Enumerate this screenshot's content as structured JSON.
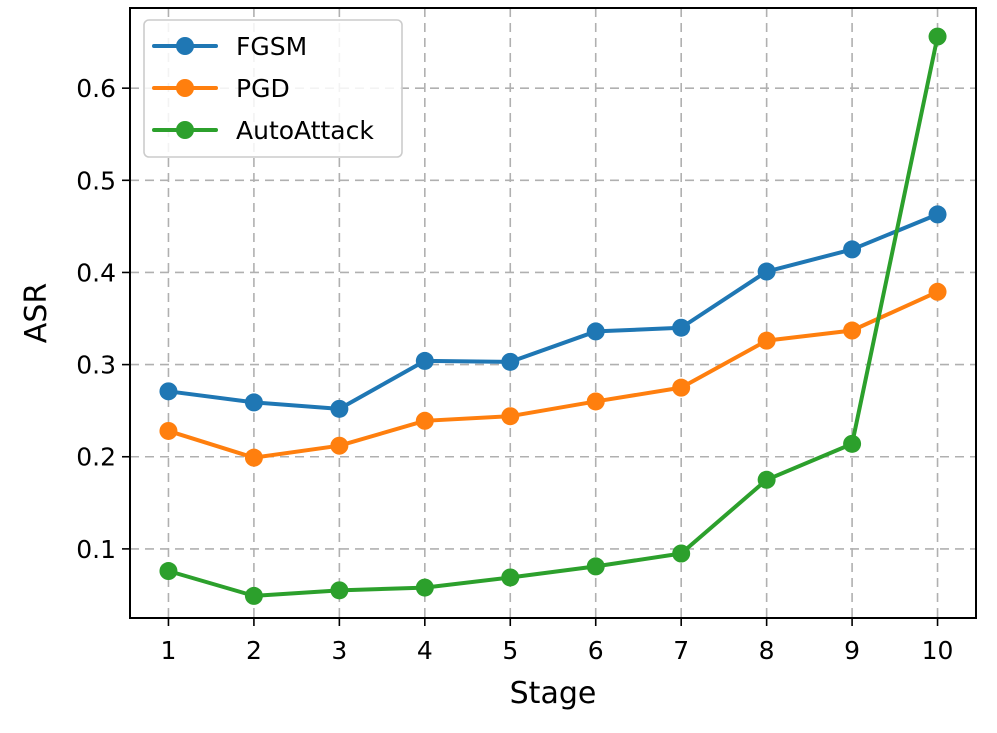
{
  "chart_data": {
    "type": "line",
    "title": "",
    "xlabel": "Stage",
    "ylabel": "ASR",
    "x": [
      1,
      2,
      3,
      4,
      5,
      6,
      7,
      8,
      9,
      10
    ],
    "x_tick_labels": [
      "1",
      "2",
      "3",
      "4",
      "5",
      "6",
      "7",
      "8",
      "9",
      "10"
    ],
    "y_ticks": [
      0.1,
      0.2,
      0.3,
      0.4,
      0.5,
      0.6
    ],
    "y_tick_labels": [
      "0.1",
      "0.2",
      "0.3",
      "0.4",
      "0.5",
      "0.6"
    ],
    "xlim": [
      0.55,
      10.45
    ],
    "ylim": [
      0.025,
      0.687
    ],
    "grid": true,
    "legend_position": "upper-left",
    "series": [
      {
        "name": "FGSM",
        "color": "#1f77b4",
        "values": [
          0.271,
          0.259,
          0.252,
          0.304,
          0.303,
          0.336,
          0.34,
          0.401,
          0.425,
          0.463
        ]
      },
      {
        "name": "PGD",
        "color": "#ff7f0e",
        "values": [
          0.228,
          0.199,
          0.212,
          0.239,
          0.244,
          0.26,
          0.275,
          0.326,
          0.337,
          0.379
        ]
      },
      {
        "name": "AutoAttack",
        "color": "#2ca02c",
        "values": [
          0.076,
          0.049,
          0.055,
          0.058,
          0.069,
          0.081,
          0.095,
          0.175,
          0.214,
          0.656
        ]
      }
    ]
  }
}
